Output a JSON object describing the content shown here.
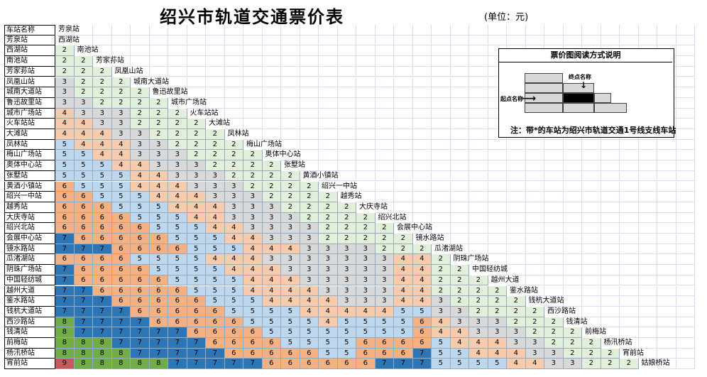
{
  "title": "绍兴市轨道交通票价表",
  "unit": "(单位：元)",
  "header_label": "车站名称",
  "stations": [
    "芳泉站",
    "西湖站",
    "南池站",
    "芳家荪站",
    "凤凰山站",
    "城南大道站",
    "鲁迅故里站",
    "城市广场站",
    "火车站站",
    "大滩站",
    "凤林站",
    "梅山广场站",
    "奥体中心站",
    "张墅站",
    "黄酒小镇站",
    "绍兴一中站",
    "越秀站",
    "大庆寺站",
    "绍兴北站",
    "会展中心站",
    "镜水路站",
    "瓜渚湖站",
    "阴珠广场站",
    "中国轻纺城",
    "越州大道",
    "鉴水路站",
    "钱杭大道站",
    "西沙路站",
    "钱清站",
    "前梅站",
    "杨汛桥站",
    "宵前站",
    "姑娘桥站"
  ],
  "rows_note": "Row i lists fares from station i to stations 0..i-1",
  "fares": [
    [],
    [
      2
    ],
    [
      2,
      2
    ],
    [
      2,
      2,
      2
    ],
    [
      3,
      2,
      2,
      2
    ],
    [
      3,
      2,
      2,
      2,
      2
    ],
    [
      3,
      3,
      2,
      2,
      2,
      2
    ],
    [
      4,
      3,
      3,
      3,
      2,
      2,
      2
    ],
    [
      4,
      4,
      3,
      3,
      2,
      2,
      2,
      2
    ],
    [
      4,
      4,
      4,
      3,
      3,
      2,
      2,
      2,
      2
    ],
    [
      5,
      4,
      4,
      4,
      3,
      3,
      2,
      2,
      2,
      2
    ],
    [
      5,
      5,
      4,
      4,
      3,
      3,
      3,
      2,
      2,
      2,
      2
    ],
    [
      5,
      5,
      5,
      4,
      4,
      3,
      3,
      3,
      2,
      2,
      2,
      2
    ],
    [
      5,
      5,
      5,
      5,
      4,
      4,
      3,
      3,
      3,
      2,
      2,
      2,
      2
    ],
    [
      6,
      5,
      5,
      5,
      4,
      4,
      4,
      3,
      3,
      3,
      2,
      2,
      2,
      2
    ],
    [
      6,
      6,
      5,
      5,
      5,
      4,
      4,
      4,
      3,
      3,
      3,
      2,
      2,
      2,
      2
    ],
    [
      6,
      6,
      6,
      5,
      5,
      5,
      4,
      4,
      4,
      3,
      3,
      3,
      2,
      2,
      2,
      2
    ],
    [
      6,
      6,
      6,
      6,
      5,
      5,
      5,
      4,
      4,
      3,
      3,
      3,
      3,
      2,
      2,
      2,
      2
    ],
    [
      6,
      6,
      6,
      6,
      6,
      5,
      5,
      5,
      4,
      4,
      3,
      3,
      3,
      3,
      2,
      2,
      2,
      2
    ],
    [
      7,
      6,
      6,
      6,
      6,
      6,
      5,
      5,
      5,
      4,
      4,
      3,
      3,
      3,
      2,
      2,
      2,
      2,
      2
    ],
    [
      7,
      7,
      7,
      6,
      6,
      6,
      6,
      5,
      5,
      5,
      4,
      4,
      4,
      3,
      3,
      3,
      3,
      2,
      2,
      2
    ],
    [
      6,
      6,
      6,
      6,
      5,
      5,
      5,
      5,
      4,
      4,
      4,
      3,
      3,
      3,
      3,
      3,
      3,
      3,
      4,
      4,
      2
    ],
    [
      7,
      6,
      6,
      6,
      6,
      5,
      5,
      5,
      5,
      4,
      4,
      4,
      3,
      3,
      3,
      3,
      3,
      3,
      4,
      4,
      2,
      2
    ],
    [
      7,
      6,
      6,
      6,
      6,
      6,
      5,
      5,
      5,
      5,
      4,
      4,
      4,
      3,
      3,
      3,
      3,
      3,
      4,
      4,
      2,
      2,
      2
    ],
    [
      7,
      7,
      6,
      6,
      6,
      6,
      6,
      5,
      5,
      5,
      4,
      4,
      4,
      4,
      3,
      3,
      3,
      3,
      4,
      4,
      2,
      2,
      2,
      2
    ],
    [
      7,
      7,
      7,
      6,
      6,
      6,
      6,
      6,
      5,
      5,
      5,
      4,
      4,
      4,
      4,
      3,
      3,
      3,
      4,
      4,
      3,
      2,
      2,
      2,
      2
    ],
    [
      7,
      7,
      7,
      7,
      6,
      6,
      6,
      6,
      6,
      5,
      5,
      5,
      5,
      4,
      4,
      4,
      4,
      4,
      5,
      5,
      3,
      3,
      2,
      2,
      2,
      2
    ],
    [
      8,
      7,
      7,
      7,
      7,
      6,
      6,
      6,
      6,
      6,
      5,
      5,
      5,
      5,
      4,
      5,
      5,
      5,
      5,
      6,
      4,
      3,
      3,
      3,
      2,
      2,
      2
    ],
    [
      8,
      7,
      7,
      7,
      7,
      7,
      7,
      6,
      6,
      6,
      6,
      5,
      5,
      5,
      5,
      5,
      5,
      5,
      5,
      6,
      4,
      4,
      3,
      3,
      3,
      2,
      2,
      2
    ],
    [
      8,
      8,
      8,
      7,
      7,
      7,
      7,
      7,
      6,
      6,
      6,
      6,
      5,
      5,
      5,
      5,
      6,
      6,
      6,
      6,
      5,
      4,
      4,
      4,
      3,
      3,
      2,
      2,
      2
    ],
    [
      8,
      8,
      8,
      8,
      7,
      7,
      7,
      7,
      7,
      6,
      6,
      6,
      6,
      6,
      5,
      5,
      6,
      6,
      6,
      7,
      5,
      5,
      4,
      4,
      4,
      3,
      3,
      2,
      2,
      2
    ],
    [
      9,
      8,
      8,
      8,
      8,
      8,
      7,
      7,
      7,
      7,
      7,
      6,
      6,
      6,
      6,
      6,
      6,
      7,
      7,
      7,
      5,
      5,
      5,
      5,
      4,
      4,
      3,
      3,
      2,
      2,
      2
    ],
    [
      9,
      9,
      9,
      8,
      8,
      8,
      8,
      8,
      7,
      7,
      7,
      7,
      7,
      6,
      6,
      6,
      7,
      7,
      7,
      7,
      6,
      5,
      5,
      5,
      5,
      4,
      4,
      3,
      3,
      2,
      2,
      2
    ]
  ],
  "fare_colors": {
    "2": "#e2efda",
    "3": "#d9d9d9",
    "4": "#f8cbad",
    "5": "#bdd7ee",
    "6": "#f4b183",
    "7": "#2e75b6",
    "8": "#70ad47",
    "9": "#c55a5a"
  },
  "legend": {
    "title": "票价图阅读方式说明",
    "start_label": "起点名称",
    "end_label": "终点名称",
    "note": "注：带*的车站为绍兴市轨道交通1号线支线车站"
  }
}
